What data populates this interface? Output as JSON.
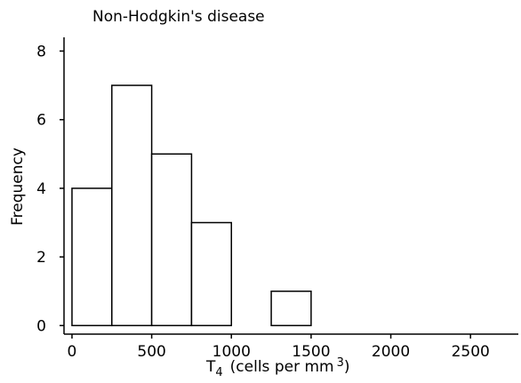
{
  "chart_data": {
    "type": "bar",
    "title": "Non-Hodgkin's disease",
    "xlabel": {
      "main": "T",
      "subscript": "4",
      "unit": "(cells per mm",
      "superscript": "3",
      "closing": ")"
    },
    "ylabel": "Frequency",
    "bin_width": 250,
    "bins": [
      {
        "start": 0,
        "end": 250,
        "count": 4
      },
      {
        "start": 250,
        "end": 500,
        "count": 7
      },
      {
        "start": 500,
        "end": 750,
        "count": 5
      },
      {
        "start": 750,
        "end": 1000,
        "count": 3
      },
      {
        "start": 1000,
        "end": 1250,
        "count": 0
      },
      {
        "start": 1250,
        "end": 1500,
        "count": 1
      }
    ],
    "xlim": [
      -50,
      2800
    ],
    "ylim": [
      -0.25,
      8.4
    ],
    "xticks": [
      {
        "value": 0,
        "label": "0"
      },
      {
        "value": 500,
        "label": "500"
      },
      {
        "value": 1000,
        "label": "1000"
      },
      {
        "value": 1500,
        "label": "1500"
      },
      {
        "value": 2000,
        "label": "2000"
      },
      {
        "value": 2500,
        "label": "2500"
      }
    ],
    "yticks": [
      {
        "value": 0,
        "label": "0"
      },
      {
        "value": 2,
        "label": "2"
      },
      {
        "value": 4,
        "label": "4"
      },
      {
        "value": 6,
        "label": "6"
      },
      {
        "value": 8,
        "label": "8"
      }
    ],
    "grid": false,
    "colors": {
      "stroke": "#000000",
      "fill": "#ffffff",
      "background": "#ffffff"
    }
  }
}
